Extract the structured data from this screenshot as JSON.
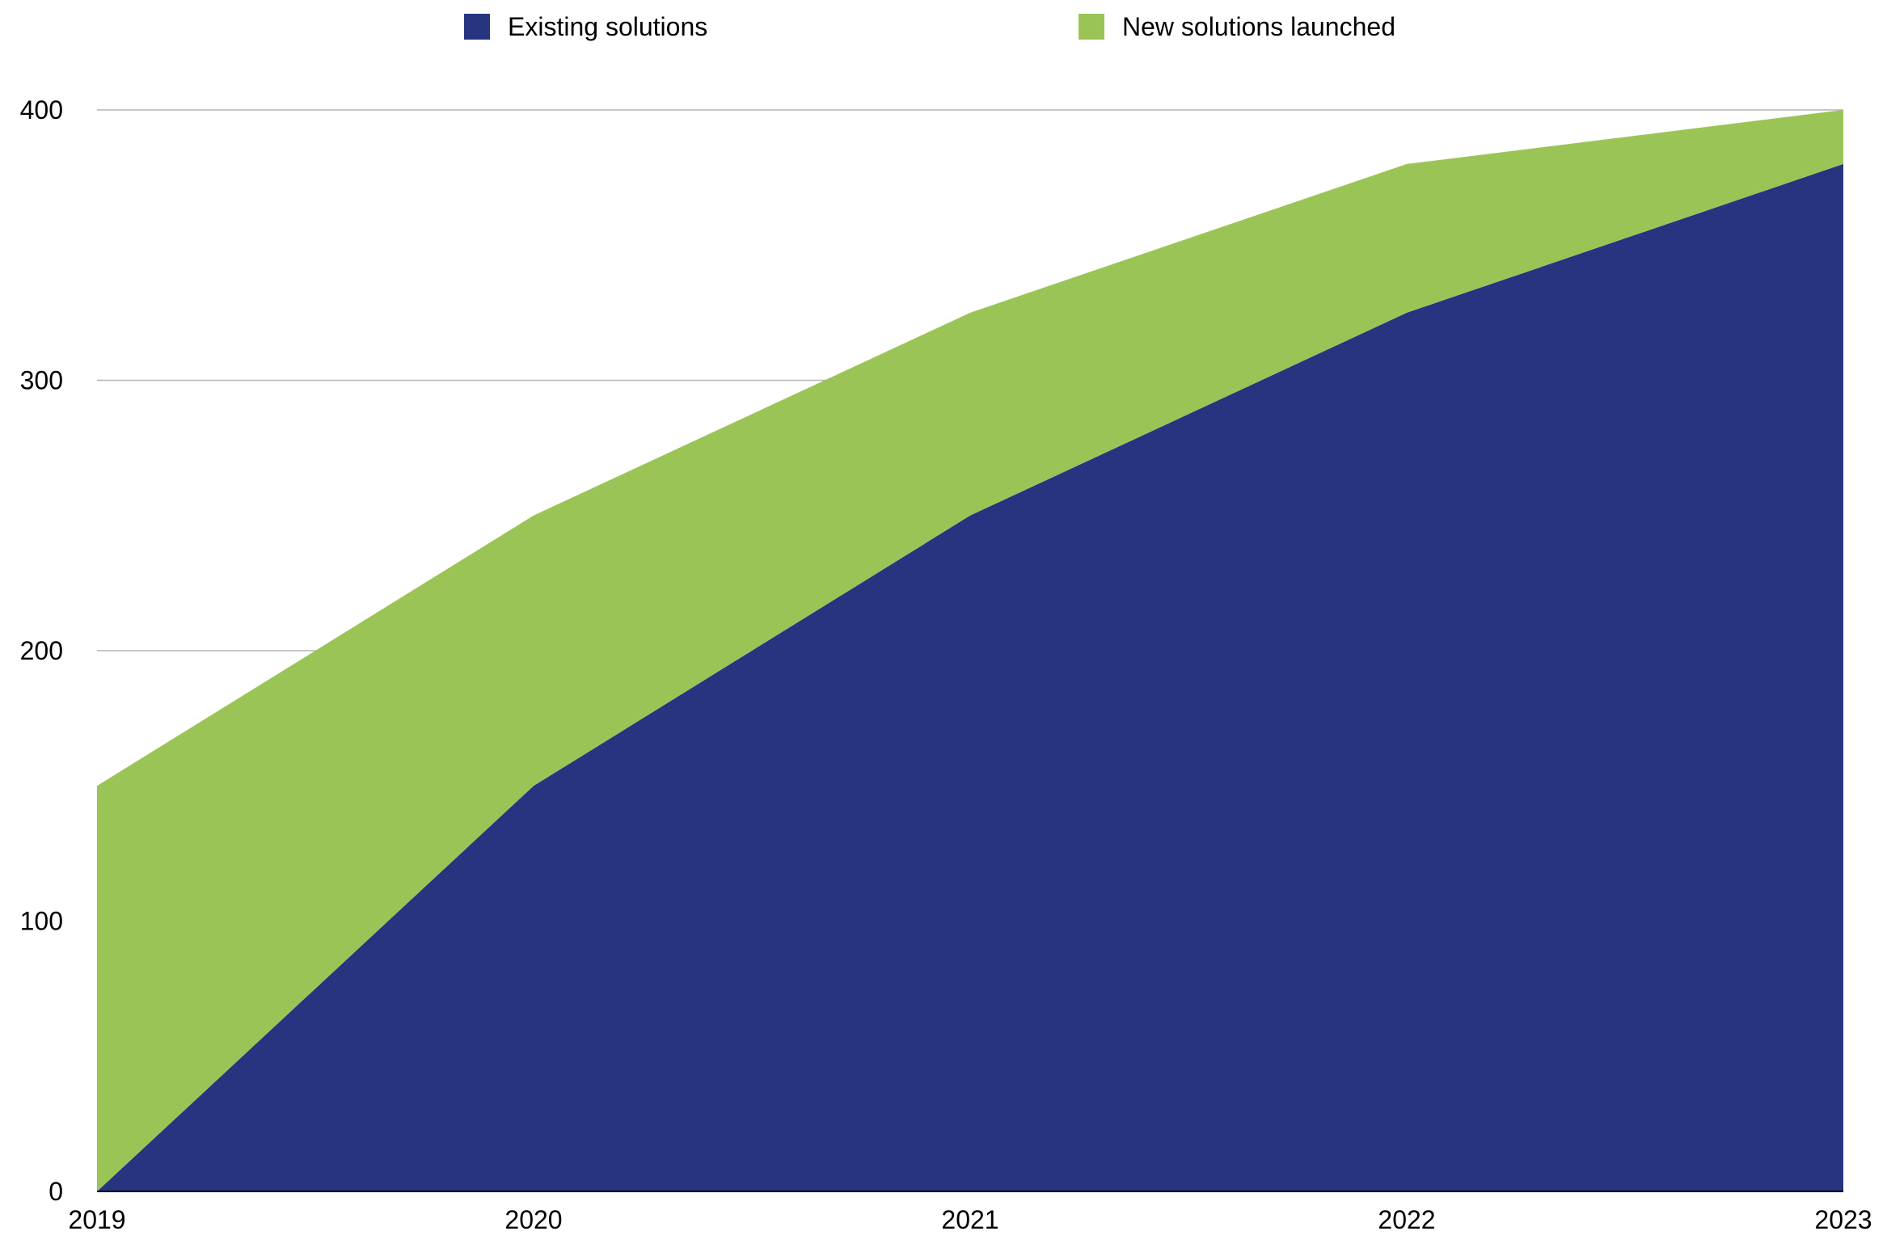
{
  "chart_data": {
    "type": "area",
    "stacked": true,
    "categories": [
      "2019",
      "2020",
      "2021",
      "2022",
      "2023"
    ],
    "series": [
      {
        "name": "Existing solutions",
        "values": [
          0,
          150,
          250,
          325,
          380
        ],
        "color": "#273580"
      },
      {
        "name": "New solutions launched",
        "values": [
          150,
          100,
          75,
          55,
          20
        ],
        "color": "#9bc457"
      }
    ],
    "title": "",
    "xlabel": "",
    "ylabel": "",
    "ylim": [
      0,
      400
    ],
    "yticks": [
      "0",
      "100",
      "200",
      "300",
      "400"
    ],
    "grid": true,
    "legend_position": "top"
  }
}
